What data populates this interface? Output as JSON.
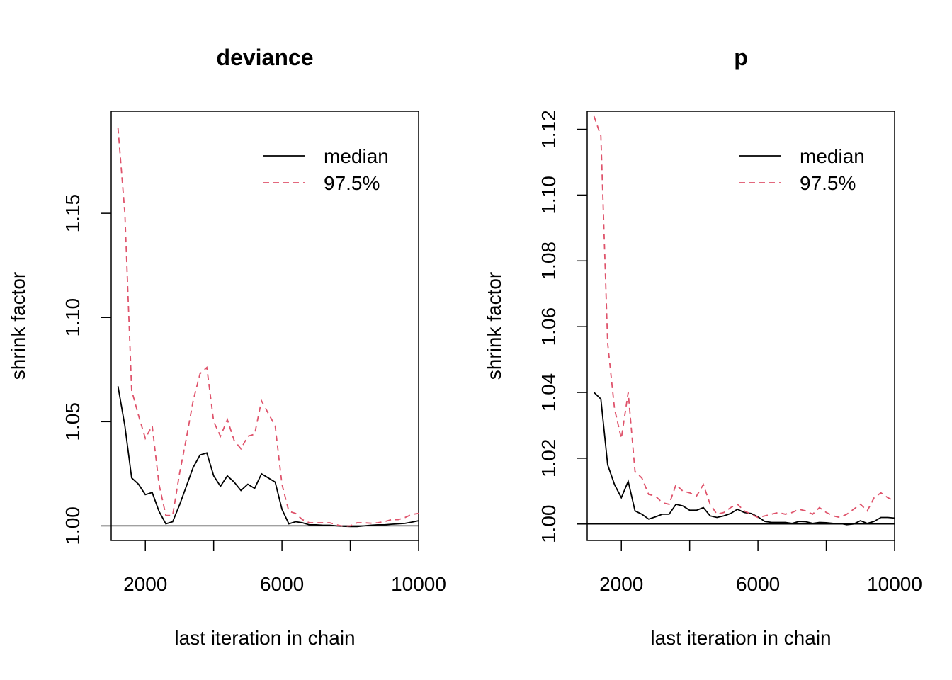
{
  "chart_data": [
    {
      "type": "line",
      "title": "deviance",
      "xlabel": "last iteration in chain",
      "ylabel": "shrink factor",
      "xlim": [
        1000,
        10000
      ],
      "ylim": [
        0.993,
        1.199
      ],
      "x_ticks": [
        2000,
        4000,
        6000,
        8000,
        10000
      ],
      "x_tick_labels": [
        "2000",
        "",
        "6000",
        "",
        "10000"
      ],
      "y_ticks": [
        1.0,
        1.05,
        1.1,
        1.15
      ],
      "y_tick_labels": [
        "1.00",
        "1.05",
        "1.10",
        "1.15"
      ],
      "reference_line": 1.0,
      "legend": {
        "position": "top-right",
        "entries": [
          "median",
          "97.5%"
        ]
      },
      "x": [
        1200,
        1400,
        1600,
        1800,
        2000,
        2200,
        2400,
        2600,
        2800,
        3000,
        3200,
        3400,
        3600,
        3800,
        4000,
        4200,
        4400,
        4600,
        4800,
        5000,
        5200,
        5400,
        5600,
        5800,
        6000,
        6200,
        6400,
        6600,
        6800,
        7000,
        7200,
        7400,
        7600,
        7800,
        8000,
        8200,
        8400,
        8600,
        8800,
        9000,
        9200,
        9400,
        9600,
        9800,
        10000
      ],
      "series": [
        {
          "name": "median",
          "color": "#000000",
          "dash": "solid",
          "values": [
            1.067,
            1.048,
            1.023,
            1.02,
            1.015,
            1.016,
            1.007,
            1.001,
            1.002,
            1.01,
            1.019,
            1.028,
            1.034,
            1.035,
            1.024,
            1.019,
            1.024,
            1.021,
            1.017,
            1.02,
            1.018,
            1.025,
            1.023,
            1.021,
            1.008,
            1.001,
            1.002,
            1.0015,
            1.0005,
            1.0005,
            1.0003,
            1.0003,
            1.0,
            0.9998,
            0.9997,
            0.9997,
            1.0,
            1.0003,
            1.0005,
            1.0005,
            1.0008,
            1.001,
            1.0012,
            1.0018,
            1.0025
          ]
        },
        {
          "name": "97.5%",
          "color": "#DF536B",
          "dash": "dashed",
          "values": [
            1.191,
            1.15,
            1.065,
            1.053,
            1.042,
            1.048,
            1.02,
            1.005,
            1.005,
            1.025,
            1.042,
            1.06,
            1.073,
            1.076,
            1.05,
            1.043,
            1.051,
            1.041,
            1.037,
            1.043,
            1.044,
            1.06,
            1.054,
            1.048,
            1.02,
            1.007,
            1.006,
            1.003,
            1.0015,
            1.0015,
            1.0015,
            1.0015,
            1.0005,
            0.9998,
            1.0,
            1.0015,
            1.0015,
            1.0013,
            1.0015,
            1.002,
            1.003,
            1.003,
            1.004,
            1.0055,
            1.006
          ]
        }
      ]
    },
    {
      "type": "line",
      "title": "p",
      "xlabel": "last iteration in chain",
      "ylabel": "shrink factor",
      "xlim": [
        1000,
        10000
      ],
      "ylim": [
        0.995,
        1.1255
      ],
      "x_ticks": [
        2000,
        4000,
        6000,
        8000,
        10000
      ],
      "x_tick_labels": [
        "2000",
        "",
        "6000",
        "",
        "10000"
      ],
      "y_ticks": [
        1.0,
        1.02,
        1.04,
        1.06,
        1.08,
        1.1,
        1.12
      ],
      "y_tick_labels": [
        "1.00",
        "1.02",
        "1.04",
        "1.06",
        "1.08",
        "1.10",
        "1.12"
      ],
      "reference_line": 1.0,
      "legend": {
        "position": "top-right",
        "entries": [
          "median",
          "97.5%"
        ]
      },
      "x": [
        1200,
        1400,
        1600,
        1800,
        2000,
        2200,
        2400,
        2600,
        2800,
        3000,
        3200,
        3400,
        3600,
        3800,
        4000,
        4200,
        4400,
        4600,
        4800,
        5000,
        5200,
        5400,
        5600,
        5800,
        6000,
        6200,
        6400,
        6600,
        6800,
        7000,
        7200,
        7400,
        7600,
        7800,
        8000,
        8200,
        8400,
        8600,
        8800,
        9000,
        9200,
        9400,
        9600,
        9800,
        10000
      ],
      "series": [
        {
          "name": "median",
          "color": "#000000",
          "dash": "solid",
          "values": [
            1.04,
            1.038,
            1.018,
            1.012,
            1.008,
            1.013,
            1.004,
            1.003,
            1.0015,
            1.0022,
            1.003,
            1.003,
            1.006,
            1.0055,
            1.0042,
            1.0042,
            1.005,
            1.0025,
            1.002,
            1.0025,
            1.0032,
            1.0045,
            1.0035,
            1.0032,
            1.0022,
            1.0008,
            1.0005,
            1.0005,
            1.0005,
            1.0002,
            1.0008,
            1.0007,
            1.0002,
            1.0005,
            1.0004,
            1.0002,
            1.0002,
            0.9998,
            1.0,
            1.001,
            1.0002,
            1.0008,
            1.002,
            1.002,
            1.0018
          ]
        },
        {
          "name": "97.5%",
          "color": "#DF536B",
          "dash": "dashed",
          "values": [
            1.124,
            1.118,
            1.055,
            1.035,
            1.026,
            1.04,
            1.016,
            1.014,
            1.009,
            1.0085,
            1.0065,
            1.006,
            1.012,
            1.01,
            1.0095,
            1.0085,
            1.012,
            1.006,
            1.003,
            1.0035,
            1.005,
            1.006,
            1.004,
            1.003,
            1.002,
            1.0025,
            1.003,
            1.0035,
            1.003,
            1.0035,
            1.0045,
            1.004,
            1.003,
            1.005,
            1.0035,
            1.0025,
            1.002,
            1.003,
            1.0045,
            1.006,
            1.004,
            1.008,
            1.0095,
            1.008,
            1.007
          ]
        }
      ]
    }
  ]
}
